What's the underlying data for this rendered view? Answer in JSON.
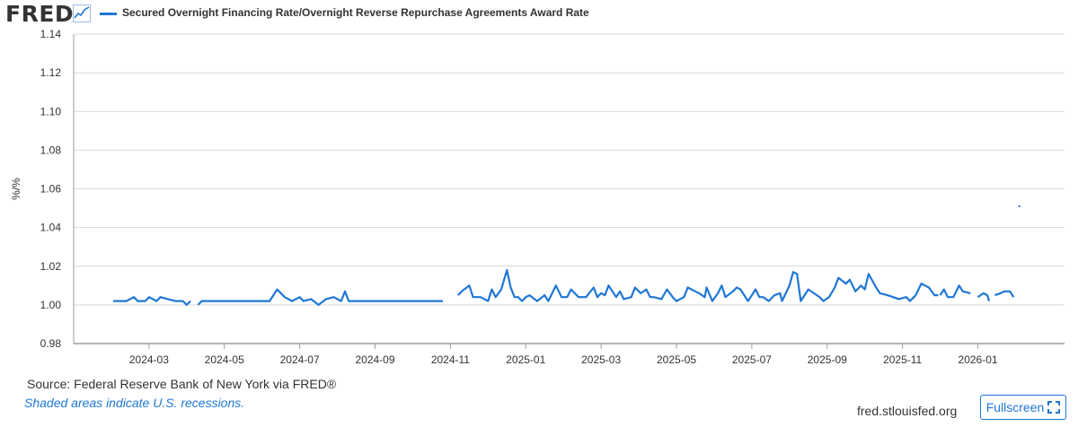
{
  "header": {
    "logo": "FRED",
    "logo_icon": "chart-line-icon",
    "legend_label": "Secured Overnight Financing Rate/Overnight Reverse Repurchase Agreements Award Rate"
  },
  "footer": {
    "source": "Source: Federal Reserve Bank of New York via FRED®",
    "recession_note": "Shaded areas indicate U.S. recessions.",
    "site": "fred.stlouisfed.org",
    "fullscreen_label": "Fullscreen",
    "fullscreen_icon": "fullscreen-icon"
  },
  "colors": {
    "series": "#1f77d4",
    "grid": "#d9d9d9",
    "axis": "#9e9e9e"
  },
  "chart_data": {
    "type": "line",
    "title": "Secured Overnight Financing Rate/Overnight Reverse Repurchase Agreements Award Rate",
    "ylabel": "%/%",
    "xlabel": "",
    "ylim": [
      0.98,
      1.14
    ],
    "yticks": [
      "0.98",
      "1.00",
      "1.02",
      "1.04",
      "1.06",
      "1.08",
      "1.10",
      "1.12",
      "1.14"
    ],
    "xlim": [
      0,
      26.3
    ],
    "xticks": [
      {
        "label": "2024-03",
        "x": 2
      },
      {
        "label": "2024-05",
        "x": 4
      },
      {
        "label": "2024-07",
        "x": 6
      },
      {
        "label": "2024-09",
        "x": 8
      },
      {
        "label": "2024-11",
        "x": 10
      },
      {
        "label": "2025-01",
        "x": 12
      },
      {
        "label": "2025-03",
        "x": 14
      },
      {
        "label": "2025-05",
        "x": 16
      },
      {
        "label": "2025-07",
        "x": 18
      },
      {
        "label": "2025-09",
        "x": 20
      },
      {
        "label": "2025-11",
        "x": 22
      },
      {
        "label": "2026-01",
        "x": 24
      }
    ],
    "x_unit": "months since 2024-01",
    "grid": true,
    "series": [
      {
        "name": "Secured Overnight Financing Rate/Overnight Reverse Repurchase Agreements Award Rate",
        "segments": [
          [
            [
              1.05,
              1.002
            ],
            [
              1.25,
              1.002
            ],
            [
              1.4,
              1.002
            ],
            [
              1.6,
              1.004
            ],
            [
              1.7,
              1.002
            ],
            [
              1.9,
              1.002
            ],
            [
              2.0,
              1.004
            ],
            [
              2.1,
              1.003
            ],
            [
              2.2,
              1.002
            ],
            [
              2.3,
              1.004
            ],
            [
              2.5,
              1.003
            ],
            [
              2.7,
              1.002
            ],
            [
              2.9,
              1.002
            ],
            [
              3.0,
              1.0
            ],
            [
              3.1,
              1.002
            ]
          ],
          [
            [
              3.3,
              1.0
            ],
            [
              3.4,
              1.002
            ],
            [
              3.6,
              1.002
            ],
            [
              3.8,
              1.002
            ],
            [
              4.0,
              1.002
            ],
            [
              4.2,
              1.002
            ],
            [
              4.4,
              1.002
            ],
            [
              4.6,
              1.002
            ],
            [
              4.8,
              1.002
            ],
            [
              5.0,
              1.002
            ],
            [
              5.2,
              1.002
            ],
            [
              5.4,
              1.008
            ],
            [
              5.6,
              1.004
            ],
            [
              5.8,
              1.002
            ],
            [
              6.0,
              1.004
            ],
            [
              6.1,
              1.002
            ],
            [
              6.3,
              1.003
            ],
            [
              6.5,
              1.0
            ],
            [
              6.7,
              1.003
            ],
            [
              6.9,
              1.004
            ],
            [
              7.1,
              1.002
            ],
            [
              7.2,
              1.007
            ],
            [
              7.3,
              1.002
            ],
            [
              7.5,
              1.002
            ],
            [
              7.7,
              1.002
            ],
            [
              7.9,
              1.002
            ],
            [
              8.1,
              1.002
            ],
            [
              8.3,
              1.002
            ],
            [
              8.6,
              1.002
            ],
            [
              8.9,
              1.002
            ],
            [
              9.2,
              1.002
            ],
            [
              9.5,
              1.002
            ],
            [
              9.8,
              1.002
            ]
          ],
          [
            [
              10.2,
              1.005
            ],
            [
              10.3,
              1.007
            ],
            [
              10.5,
              1.01
            ],
            [
              10.6,
              1.004
            ],
            [
              10.8,
              1.004
            ],
            [
              11.0,
              1.002
            ],
            [
              11.1,
              1.008
            ],
            [
              11.2,
              1.004
            ],
            [
              11.35,
              1.008
            ],
            [
              11.5,
              1.018
            ],
            [
              11.6,
              1.009
            ],
            [
              11.7,
              1.004
            ],
            [
              11.8,
              1.004
            ],
            [
              11.9,
              1.002
            ],
            [
              12.0,
              1.004
            ],
            [
              12.1,
              1.005
            ],
            [
              12.3,
              1.002
            ],
            [
              12.5,
              1.005
            ],
            [
              12.6,
              1.002
            ],
            [
              12.8,
              1.01
            ],
            [
              12.95,
              1.004
            ],
            [
              13.1,
              1.004
            ],
            [
              13.2,
              1.008
            ],
            [
              13.3,
              1.006
            ],
            [
              13.4,
              1.004
            ],
            [
              13.6,
              1.004
            ],
            [
              13.8,
              1.009
            ],
            [
              13.9,
              1.004
            ],
            [
              14.0,
              1.006
            ],
            [
              14.1,
              1.005
            ],
            [
              14.2,
              1.01
            ],
            [
              14.4,
              1.004
            ],
            [
              14.5,
              1.007
            ],
            [
              14.6,
              1.003
            ],
            [
              14.8,
              1.004
            ],
            [
              14.9,
              1.009
            ],
            [
              15.05,
              1.006
            ],
            [
              15.2,
              1.008
            ],
            [
              15.3,
              1.004
            ],
            [
              15.4,
              1.004
            ],
            [
              15.6,
              1.003
            ],
            [
              15.75,
              1.008
            ],
            [
              15.9,
              1.004
            ],
            [
              16.0,
              1.002
            ],
            [
              16.2,
              1.004
            ],
            [
              16.3,
              1.009
            ],
            [
              16.5,
              1.007
            ],
            [
              16.6,
              1.006
            ],
            [
              16.75,
              1.004
            ],
            [
              16.8,
              1.009
            ],
            [
              16.95,
              1.002
            ],
            [
              17.1,
              1.006
            ],
            [
              17.2,
              1.01
            ],
            [
              17.3,
              1.004
            ],
            [
              17.5,
              1.007
            ],
            [
              17.6,
              1.009
            ],
            [
              17.7,
              1.008
            ],
            [
              17.9,
              1.002
            ],
            [
              18.1,
              1.008
            ],
            [
              18.2,
              1.004
            ],
            [
              18.3,
              1.004
            ],
            [
              18.45,
              1.002
            ],
            [
              18.6,
              1.005
            ],
            [
              18.75,
              1.006
            ],
            [
              18.8,
              1.002
            ],
            [
              19.0,
              1.01
            ],
            [
              19.1,
              1.017
            ],
            [
              19.2,
              1.016
            ],
            [
              19.3,
              1.002
            ],
            [
              19.5,
              1.008
            ],
            [
              19.65,
              1.006
            ],
            [
              19.8,
              1.004
            ],
            [
              19.9,
              1.002
            ],
            [
              20.05,
              1.004
            ],
            [
              20.2,
              1.009
            ],
            [
              20.3,
              1.014
            ],
            [
              20.5,
              1.011
            ],
            [
              20.6,
              1.013
            ],
            [
              20.75,
              1.007
            ],
            [
              20.9,
              1.01
            ],
            [
              21.0,
              1.008
            ],
            [
              21.1,
              1.016
            ],
            [
              21.3,
              1.009
            ],
            [
              21.4,
              1.006
            ],
            [
              21.6,
              1.005
            ],
            [
              21.75,
              1.004
            ],
            [
              21.9,
              1.003
            ],
            [
              22.1,
              1.004
            ],
            [
              22.2,
              1.002
            ],
            [
              22.35,
              1.005
            ],
            [
              22.5,
              1.011
            ],
            [
              22.6,
              1.01
            ],
            [
              22.7,
              1.009
            ],
            [
              22.85,
              1.005
            ],
            [
              22.95,
              1.005
            ]
          ],
          [
            [
              23.0,
              1.005
            ],
            [
              23.1,
              1.008
            ],
            [
              23.2,
              1.004
            ],
            [
              23.35,
              1.004
            ],
            [
              23.5,
              1.01
            ],
            [
              23.6,
              1.007
            ],
            [
              23.8,
              1.006
            ]
          ],
          [
            [
              24.0,
              1.004
            ],
            [
              24.15,
              1.006
            ],
            [
              24.25,
              1.005
            ],
            [
              24.3,
              1.002
            ]
          ],
          [
            [
              24.45,
              1.005
            ],
            [
              24.6,
              1.006
            ],
            [
              24.7,
              1.007
            ],
            [
              24.85,
              1.007
            ],
            [
              24.95,
              1.004
            ]
          ],
          [
            [
              25.1,
              1.051
            ]
          ]
        ]
      }
    ]
  }
}
